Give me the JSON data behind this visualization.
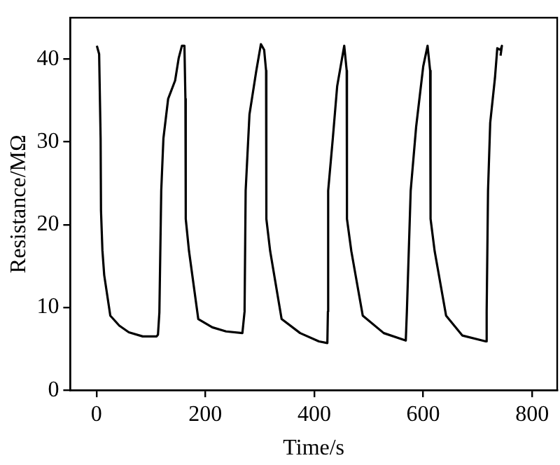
{
  "chart_data": {
    "type": "line",
    "xlabel": "Time/s",
    "ylabel": "Resistance/MΩ",
    "xlim": [
      -48,
      846
    ],
    "ylim": [
      0,
      45
    ],
    "xticks": [
      0,
      200,
      400,
      600,
      800
    ],
    "yticks": [
      0,
      10,
      20,
      30,
      40
    ],
    "grid": false,
    "legend": false,
    "marker": "none",
    "line_style": "solid",
    "series": [
      {
        "color": "#000000",
        "x": [
          0.8,
          5,
          7.7,
          8.4,
          11,
          14.3,
          25.5,
          42,
          59.5,
          85,
          110.5,
          113,
          115.6,
          119,
          123,
          131.7,
          144.5,
          151,
          157,
          161.6,
          163.4,
          164,
          170,
          187,
          212.7,
          238,
          268,
          272,
          274,
          281,
          293.6,
          302,
          308,
          311.5,
          312,
          319,
          340,
          374,
          408.5,
          424,
          425,
          425.5,
          434,
          442,
          455,
          459.5,
          460,
          468,
          489,
          527.5,
          568,
          570,
          577,
          587,
          600,
          608,
          612.7,
          613.5,
          621,
          642,
          672,
          715,
          716.5,
          719,
          723,
          731.7,
          736,
          742,
          744.5,
          742
        ],
        "values": [
          41.6,
          40.6,
          30.4,
          21.7,
          16.9,
          13.9,
          9.0,
          7.8,
          7.0,
          6.5,
          6.5,
          6.7,
          9.4,
          24.1,
          30.4,
          35.2,
          37.4,
          40.1,
          41.6,
          41.6,
          35.2,
          20.7,
          16.8,
          8.6,
          7.6,
          7.1,
          6.9,
          9.5,
          24.1,
          33.3,
          38.6,
          41.8,
          41.1,
          38.6,
          20.7,
          16.8,
          8.6,
          6.9,
          5.9,
          5.7,
          9.5,
          24.1,
          30.4,
          36.7,
          41.6,
          38.6,
          20.7,
          16.8,
          9.0,
          6.9,
          6.0,
          9.5,
          24.1,
          31.8,
          39.1,
          41.6,
          38.6,
          20.7,
          16.8,
          9.0,
          6.6,
          5.9,
          9.5,
          24.1,
          32.3,
          37.7,
          41.3,
          41.1,
          41.6,
          40.4
        ]
      }
    ]
  }
}
